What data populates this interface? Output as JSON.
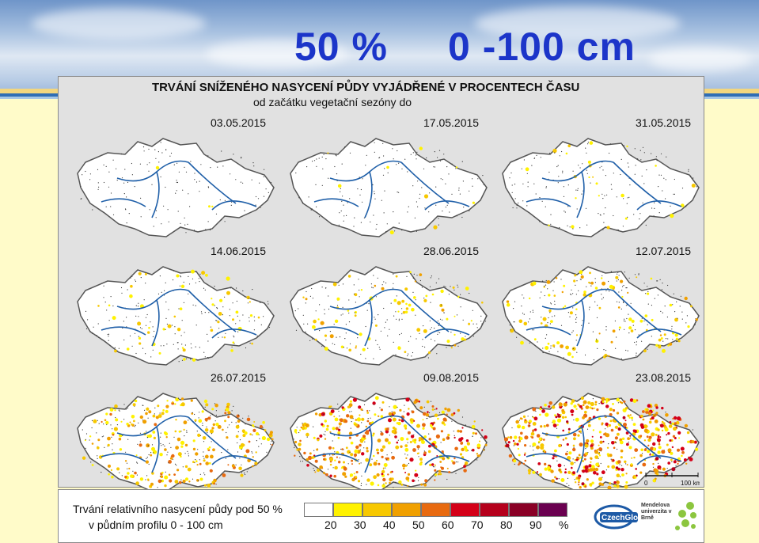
{
  "header": {
    "title_left": "50 %",
    "title_right": "0 -100 cm"
  },
  "panel": {
    "title": "TRVÁNÍ SNÍŽENÉHO NASYCENÍ PŮDY VYJÁDŘENÉ V PROCENTECH ČASU",
    "subtitle": "od začátku vegetační sezóny do"
  },
  "maps": [
    {
      "date": "03.05.2015",
      "intensity": 0.02
    },
    {
      "date": "17.05.2015",
      "intensity": 0.06
    },
    {
      "date": "31.05.2015",
      "intensity": 0.1
    },
    {
      "date": "14.06.2015",
      "intensity": 0.18
    },
    {
      "date": "28.06.2015",
      "intensity": 0.25
    },
    {
      "date": "12.07.2015",
      "intensity": 0.32
    },
    {
      "date": "26.07.2015",
      "intensity": 0.55
    },
    {
      "date": "09.08.2015",
      "intensity": 0.72
    },
    {
      "date": "23.08.2015",
      "intensity": 0.85
    }
  ],
  "scale": {
    "start": "0",
    "end": "100 km"
  },
  "legend": {
    "line1": "Trvání relativního nasycení půdy pod 50 %",
    "line2": "v půdním profilu 0 - 100 cm",
    "colors": [
      "#ffffff",
      "#fff200",
      "#f7c800",
      "#f0a000",
      "#e86a10",
      "#d40018",
      "#b5001c",
      "#8a0026",
      "#6a0050"
    ],
    "ticks": [
      "20",
      "30",
      "40",
      "50",
      "60",
      "70",
      "80",
      "90",
      "%"
    ]
  },
  "logos": {
    "czechglobe": "CzechGlobe",
    "mendel": "Mendelova univerzita v Brně"
  },
  "colors": {
    "title": "#1c35c9",
    "river": "#1f5fa8",
    "border": "#555555"
  }
}
